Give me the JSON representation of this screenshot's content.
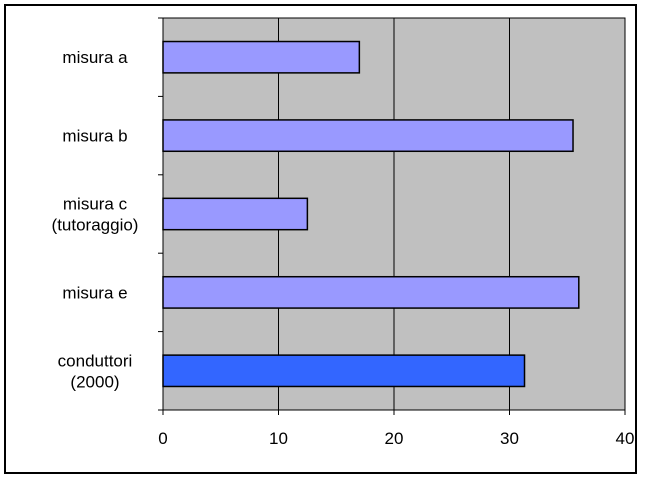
{
  "chart_data": {
    "type": "bar",
    "orientation": "horizontal",
    "categories": [
      [
        "misura a"
      ],
      [
        "misura b"
      ],
      [
        "misura c",
        "(tutoraggio)"
      ],
      [
        "misura e"
      ],
      [
        "conduttori",
        "(2000)"
      ]
    ],
    "values": [
      17,
      35.5,
      12.5,
      36,
      31.3
    ],
    "bar_colors": [
      "#9999ff",
      "#9999ff",
      "#9999ff",
      "#9999ff",
      "#3366ff"
    ],
    "xlim": [
      0,
      40
    ],
    "xticks": [
      0,
      10,
      20,
      30,
      40
    ],
    "title": "",
    "xlabel": "",
    "ylabel": "",
    "grid": "vertical",
    "legend": "none",
    "plot_background": "#c0c0c0"
  }
}
